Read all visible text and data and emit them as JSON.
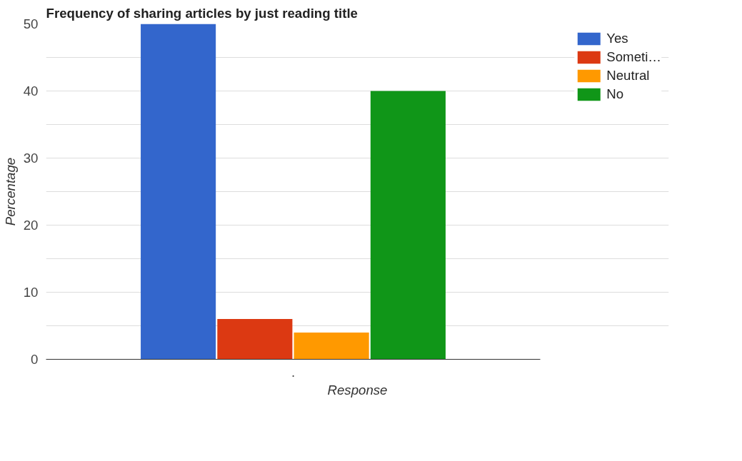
{
  "chart_data": {
    "type": "bar",
    "title": "Frequency of sharing articles by just reading title",
    "xlabel": "Response",
    "ylabel": "Percentage",
    "categories": [
      "."
    ],
    "series": [
      {
        "name": "Yes",
        "color": "#3366cc",
        "values": [
          50
        ]
      },
      {
        "name": "Someti…",
        "color": "#dc3912",
        "values": [
          6
        ]
      },
      {
        "name": "Neutral",
        "color": "#ff9900",
        "values": [
          4
        ]
      },
      {
        "name": "No",
        "color": "#109618",
        "values": [
          40
        ]
      }
    ],
    "ylim": [
      0,
      50
    ],
    "yticks": [
      0,
      {
        "value": 5,
        "label": null
      },
      10,
      {
        "value": 15,
        "label": null
      },
      20,
      {
        "value": 25,
        "label": null
      },
      30,
      {
        "value": 35,
        "label": null
      },
      40,
      {
        "value": 45,
        "label": null
      },
      50
    ],
    "grid": "y",
    "legend": "top right"
  }
}
